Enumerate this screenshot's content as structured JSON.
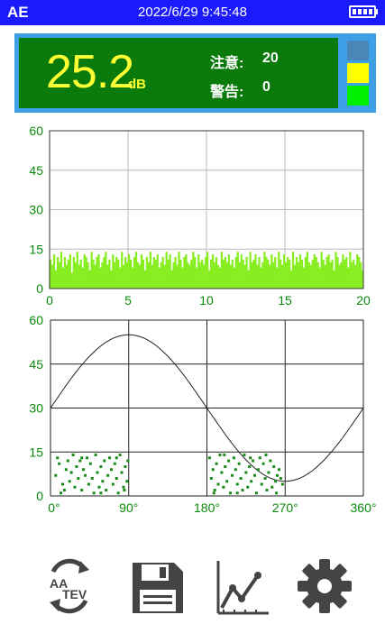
{
  "status": {
    "app": "AE",
    "datetime": "2022/6/29 9:45:48",
    "battery_icon": "battery-full-icon"
  },
  "reading": {
    "value": "25.2",
    "unit": "dB",
    "notice_label": "注意:",
    "notice_value": "20",
    "warning_label": "警告:",
    "warning_value": "0",
    "level_colors": [
      "#4a86b8",
      "#ffff00",
      "#00ee00"
    ]
  },
  "colors": {
    "panel_green": "#0a7a0a",
    "panel_border": "#3da0e6",
    "reading_yellow": "#ffff33",
    "bar_green": "#88ee22",
    "dot_green": "#1a8a1a",
    "axis_green": "#0a8a0a",
    "status_blue": "#1a1afa"
  },
  "chart_data": [
    {
      "type": "bar",
      "x_ticks": [
        "0",
        "5",
        "10",
        "15",
        "20"
      ],
      "y_ticks": [
        "0",
        "15",
        "30",
        "45",
        "60"
      ],
      "xlim": [
        0,
        20
      ],
      "ylim": [
        0,
        60
      ],
      "grid": true,
      "description_values": "dense amplitude bars mostly between 5 and 14",
      "values": [
        11,
        9,
        13,
        7,
        12,
        10,
        14,
        8,
        12,
        9,
        11,
        13,
        6,
        12,
        10,
        14,
        9,
        11,
        8,
        13,
        12,
        10,
        7,
        14,
        11,
        9,
        12,
        13,
        8,
        10,
        12,
        14,
        9,
        11,
        7,
        13,
        10,
        12,
        11,
        8,
        14,
        9,
        12,
        10,
        13,
        11,
        8,
        12,
        14,
        10,
        9,
        13,
        11,
        7,
        12,
        10,
        14,
        9,
        12,
        11,
        13,
        8,
        10,
        12,
        9,
        14,
        11,
        13,
        7,
        10,
        12,
        9,
        14,
        11,
        8,
        12,
        13,
        10,
        9,
        11,
        14,
        12,
        8,
        13,
        10,
        11,
        9,
        12,
        14,
        7,
        11,
        13,
        10,
        12,
        9,
        8,
        14,
        11,
        12,
        10,
        13,
        9,
        11,
        8,
        12,
        14,
        10,
        13,
        11,
        9,
        12,
        7,
        14,
        10,
        11,
        13,
        9,
        12,
        8,
        10,
        14,
        12,
        11,
        9,
        13,
        10,
        12,
        8,
        14,
        11,
        9,
        13,
        10,
        12,
        11,
        7,
        14,
        9,
        12,
        10,
        13,
        11,
        8,
        12,
        14,
        10,
        9,
        11,
        13,
        12,
        10,
        8,
        14,
        11,
        9,
        12,
        13,
        10,
        11,
        7,
        14,
        12,
        9,
        10,
        13,
        11,
        12,
        8,
        14,
        10,
        11,
        9,
        13,
        12,
        10,
        7
      ],
      "bar_color": "#88ee22"
    },
    {
      "type": "scatter",
      "x_ticks": [
        "0°",
        "90°",
        "180°",
        "270°",
        "360°"
      ],
      "y_ticks": [
        "0",
        "15",
        "30",
        "45",
        "60"
      ],
      "xlim": [
        0,
        360
      ],
      "ylim": [
        0,
        60
      ],
      "grid": true,
      "reference_sine": {
        "offset": 30,
        "amplitude": 25
      },
      "points": [
        [
          6,
          7
        ],
        [
          8,
          13
        ],
        [
          10,
          11
        ],
        [
          14,
          4
        ],
        [
          16,
          2
        ],
        [
          18,
          9
        ],
        [
          20,
          12
        ],
        [
          22,
          5
        ],
        [
          24,
          8
        ],
        [
          26,
          14
        ],
        [
          28,
          3
        ],
        [
          30,
          10
        ],
        [
          32,
          6
        ],
        [
          34,
          12
        ],
        [
          36,
          2
        ],
        [
          38,
          9
        ],
        [
          40,
          7
        ],
        [
          42,
          13
        ],
        [
          44,
          4
        ],
        [
          46,
          11
        ],
        [
          48,
          6
        ],
        [
          50,
          1
        ],
        [
          52,
          14
        ],
        [
          54,
          8
        ],
        [
          56,
          3
        ],
        [
          58,
          10
        ],
        [
          60,
          5
        ],
        [
          62,
          12
        ],
        [
          64,
          2
        ],
        [
          66,
          7
        ],
        [
          68,
          13
        ],
        [
          70,
          9
        ],
        [
          72,
          4
        ],
        [
          74,
          11
        ],
        [
          76,
          6
        ],
        [
          78,
          1
        ],
        [
          80,
          14
        ],
        [
          82,
          8
        ],
        [
          84,
          3
        ],
        [
          86,
          10
        ],
        [
          88,
          5
        ],
        [
          89,
          12
        ],
        [
          12,
          1
        ],
        [
          36,
          13
        ],
        [
          58,
          1
        ],
        [
          76,
          13
        ],
        [
          85,
          2
        ],
        [
          183,
          13
        ],
        [
          185,
          6
        ],
        [
          187,
          9
        ],
        [
          189,
          2
        ],
        [
          191,
          11
        ],
        [
          193,
          4
        ],
        [
          195,
          14
        ],
        [
          197,
          8
        ],
        [
          199,
          3
        ],
        [
          201,
          10
        ],
        [
          203,
          5
        ],
        [
          205,
          12
        ],
        [
          207,
          1
        ],
        [
          209,
          7
        ],
        [
          211,
          13
        ],
        [
          213,
          9
        ],
        [
          215,
          4
        ],
        [
          217,
          11
        ],
        [
          219,
          6
        ],
        [
          221,
          2
        ],
        [
          223,
          14
        ],
        [
          225,
          8
        ],
        [
          227,
          3
        ],
        [
          229,
          10
        ],
        [
          231,
          5
        ],
        [
          233,
          12
        ],
        [
          235,
          7
        ],
        [
          237,
          1
        ],
        [
          239,
          9
        ],
        [
          241,
          13
        ],
        [
          243,
          4
        ],
        [
          245,
          11
        ],
        [
          247,
          6
        ],
        [
          249,
          2
        ],
        [
          251,
          8
        ],
        [
          253,
          12
        ],
        [
          255,
          3
        ],
        [
          257,
          10
        ],
        [
          259,
          5
        ],
        [
          261,
          7
        ],
        [
          263,
          9
        ],
        [
          265,
          6
        ],
        [
          267,
          4
        ],
        [
          188,
          1
        ],
        [
          200,
          14
        ],
        [
          215,
          1
        ],
        [
          230,
          13
        ],
        [
          248,
          14
        ],
        [
          260,
          1
        ]
      ],
      "point_color": "#1a8a1a"
    }
  ],
  "toolbar": [
    {
      "name": "mode-switch-button",
      "icon": "aa-tev-switch-icon",
      "label_top": "AA",
      "label_bottom": "TEV"
    },
    {
      "name": "save-button",
      "icon": "floppy-disk-icon"
    },
    {
      "name": "trend-button",
      "icon": "trend-chart-icon"
    },
    {
      "name": "settings-button",
      "icon": "gear-icon"
    }
  ]
}
